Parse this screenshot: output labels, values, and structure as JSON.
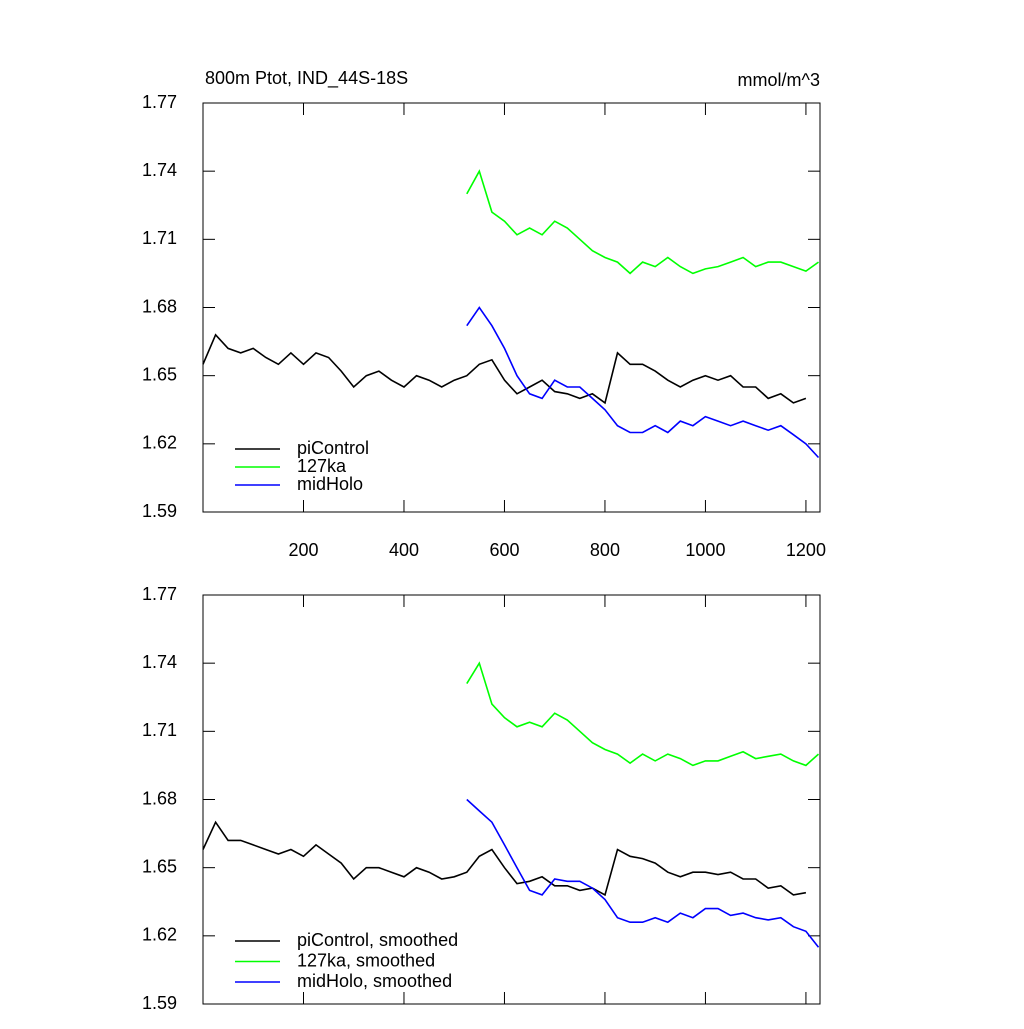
{
  "chart_data": [
    {
      "type": "line",
      "title": "800m Ptot, IND_44S-18S",
      "units": "mmol/m^3",
      "xlim": [
        0,
        1228
      ],
      "xticks": [
        200,
        400,
        600,
        800,
        1000,
        1200
      ],
      "ylim": [
        1.59,
        1.77
      ],
      "yticks": [
        1.59,
        1.62,
        1.65,
        1.68,
        1.71,
        1.74,
        1.77
      ],
      "legend": "lower left",
      "series": [
        {
          "name": "piControl",
          "color": "#000000",
          "x": [
            0,
            25,
            50,
            75,
            100,
            125,
            150,
            175,
            200,
            225,
            250,
            275,
            300,
            325,
            350,
            375,
            400,
            425,
            450,
            475,
            500,
            525,
            550,
            575,
            600,
            625,
            650,
            675,
            700,
            725,
            750,
            775,
            800,
            825,
            850,
            875,
            900,
            925,
            950,
            975,
            1000,
            1025,
            1050,
            1075,
            1100,
            1125,
            1150,
            1175,
            1200
          ],
          "values": [
            1.655,
            1.668,
            1.662,
            1.66,
            1.662,
            1.658,
            1.655,
            1.66,
            1.655,
            1.66,
            1.658,
            1.652,
            1.645,
            1.65,
            1.652,
            1.648,
            1.645,
            1.65,
            1.648,
            1.645,
            1.648,
            1.65,
            1.655,
            1.657,
            1.648,
            1.642,
            1.645,
            1.648,
            1.643,
            1.642,
            1.64,
            1.642,
            1.638,
            1.66,
            1.655,
            1.655,
            1.652,
            1.648,
            1.645,
            1.648,
            1.65,
            1.648,
            1.65,
            1.645,
            1.645,
            1.64,
            1.642,
            1.638,
            1.64
          ]
        },
        {
          "name": "127ka",
          "color": "#00ff00",
          "x": [
            525,
            550,
            575,
            600,
            625,
            650,
            675,
            700,
            725,
            750,
            775,
            800,
            825,
            850,
            875,
            900,
            925,
            950,
            975,
            1000,
            1025,
            1050,
            1075,
            1100,
            1125,
            1150,
            1175,
            1200,
            1225
          ],
          "values": [
            1.73,
            1.74,
            1.722,
            1.718,
            1.712,
            1.715,
            1.712,
            1.718,
            1.715,
            1.71,
            1.705,
            1.702,
            1.7,
            1.695,
            1.7,
            1.698,
            1.702,
            1.698,
            1.695,
            1.697,
            1.698,
            1.7,
            1.702,
            1.698,
            1.7,
            1.7,
            1.698,
            1.696,
            1.7
          ]
        },
        {
          "name": "midHolo",
          "color": "#0000ff",
          "x": [
            525,
            550,
            575,
            600,
            625,
            650,
            675,
            700,
            725,
            750,
            775,
            800,
            825,
            850,
            875,
            900,
            925,
            950,
            975,
            1000,
            1025,
            1050,
            1075,
            1100,
            1125,
            1150,
            1175,
            1200,
            1225
          ],
          "values": [
            1.672,
            1.68,
            1.672,
            1.662,
            1.65,
            1.642,
            1.64,
            1.648,
            1.645,
            1.645,
            1.64,
            1.635,
            1.628,
            1.625,
            1.625,
            1.628,
            1.625,
            1.63,
            1.628,
            1.632,
            1.63,
            1.628,
            1.63,
            1.628,
            1.626,
            1.628,
            1.624,
            1.62,
            1.614
          ]
        }
      ]
    },
    {
      "type": "line",
      "xlim": [
        0,
        1228
      ],
      "ylim": [
        1.59,
        1.77
      ],
      "yticks": [
        1.59,
        1.62,
        1.65,
        1.68,
        1.71,
        1.74,
        1.77
      ],
      "legend": "lower left",
      "series": [
        {
          "name": "piControl, smoothed",
          "color": "#000000",
          "x": [
            0,
            25,
            50,
            75,
            100,
            125,
            150,
            175,
            200,
            225,
            250,
            275,
            300,
            325,
            350,
            375,
            400,
            425,
            450,
            475,
            500,
            525,
            550,
            575,
            600,
            625,
            650,
            675,
            700,
            725,
            750,
            775,
            800,
            825,
            850,
            875,
            900,
            925,
            950,
            975,
            1000,
            1025,
            1050,
            1075,
            1100,
            1125,
            1150,
            1175,
            1200
          ],
          "values": [
            1.658,
            1.67,
            1.662,
            1.662,
            1.66,
            1.658,
            1.656,
            1.658,
            1.655,
            1.66,
            1.656,
            1.652,
            1.645,
            1.65,
            1.65,
            1.648,
            1.646,
            1.65,
            1.648,
            1.645,
            1.646,
            1.648,
            1.655,
            1.658,
            1.65,
            1.643,
            1.644,
            1.646,
            1.642,
            1.642,
            1.64,
            1.641,
            1.638,
            1.658,
            1.655,
            1.654,
            1.652,
            1.648,
            1.646,
            1.648,
            1.648,
            1.647,
            1.648,
            1.645,
            1.645,
            1.641,
            1.642,
            1.638,
            1.639
          ]
        },
        {
          "name": "127ka, smoothed",
          "color": "#00ff00",
          "x": [
            525,
            550,
            575,
            600,
            625,
            650,
            675,
            700,
            725,
            750,
            775,
            800,
            825,
            850,
            875,
            900,
            925,
            950,
            975,
            1000,
            1025,
            1050,
            1075,
            1100,
            1125,
            1150,
            1175,
            1200,
            1225
          ],
          "values": [
            1.731,
            1.74,
            1.722,
            1.716,
            1.712,
            1.714,
            1.712,
            1.718,
            1.715,
            1.71,
            1.705,
            1.702,
            1.7,
            1.696,
            1.7,
            1.697,
            1.7,
            1.698,
            1.695,
            1.697,
            1.697,
            1.699,
            1.701,
            1.698,
            1.699,
            1.7,
            1.697,
            1.695,
            1.7
          ]
        },
        {
          "name": "midHolo, smoothed",
          "color": "#0000ff",
          "x": [
            525,
            550,
            575,
            600,
            625,
            650,
            675,
            700,
            725,
            750,
            775,
            800,
            825,
            850,
            875,
            900,
            925,
            950,
            975,
            1000,
            1025,
            1050,
            1075,
            1100,
            1125,
            1150,
            1175,
            1200,
            1225
          ],
          "values": [
            1.68,
            1.675,
            1.67,
            1.66,
            1.65,
            1.64,
            1.638,
            1.645,
            1.644,
            1.644,
            1.641,
            1.636,
            1.628,
            1.626,
            1.626,
            1.628,
            1.626,
            1.63,
            1.628,
            1.632,
            1.632,
            1.629,
            1.63,
            1.628,
            1.627,
            1.628,
            1.624,
            1.622,
            1.615
          ]
        }
      ]
    }
  ]
}
